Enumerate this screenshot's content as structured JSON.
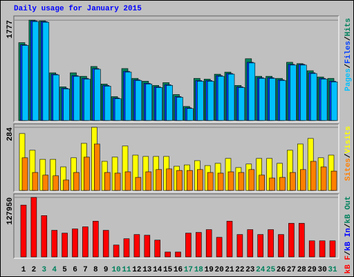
{
  "title": "Daily usage for January 2015",
  "categories": [
    "1",
    "2",
    "3",
    "4",
    "5",
    "6",
    "7",
    "8",
    "9",
    "10",
    "11",
    "12",
    "13",
    "14",
    "15",
    "16",
    "17",
    "18",
    "19",
    "20",
    "21",
    "22",
    "23",
    "24",
    "25",
    "26",
    "27",
    "28",
    "29",
    "30",
    "31"
  ],
  "category_colors": [
    "#000000",
    "#000000",
    "#00805c",
    "#00805c",
    "#000000",
    "#000000",
    "#000000",
    "#000000",
    "#000000",
    "#00805c",
    "#00805c",
    "#000000",
    "#000000",
    "#000000",
    "#000000",
    "#000000",
    "#00805c",
    "#00805c",
    "#000000",
    "#000000",
    "#000000",
    "#000000",
    "#000000",
    "#00805c",
    "#00805c",
    "#000000",
    "#000000",
    "#000000",
    "#000000",
    "#000000",
    "#00805c"
  ],
  "chart_data": [
    {
      "type": "bar",
      "ylim": [
        0,
        1827
      ],
      "yticks": [
        1777
      ],
      "separator": "/",
      "series": [
        {
          "name": "Hits",
          "color": "#00805c",
          "values": [
            1379,
            1777,
            1765,
            845,
            596,
            845,
            783,
            957,
            646,
            423,
            920,
            746,
            696,
            621,
            671,
            460,
            249,
            746,
            733,
            820,
            857,
            621,
            1094,
            783,
            783,
            746,
            1031,
            1007,
            882,
            771,
            746
          ]
        },
        {
          "name": "Files",
          "color": "#0040ff",
          "values": [
            1342,
            1765,
            1752,
            820,
            572,
            795,
            746,
            920,
            621,
            398,
            870,
            721,
            659,
            596,
            634,
            423,
            224,
            708,
            708,
            795,
            833,
            596,
            1031,
            758,
            758,
            721,
            994,
            994,
            845,
            746,
            696
          ]
        },
        {
          "name": "Pages",
          "color": "#00c0ff",
          "values": [
            1330,
            1752,
            1740,
            808,
            560,
            783,
            734,
            908,
            609,
            386,
            858,
            709,
            647,
            584,
            622,
            411,
            212,
            696,
            696,
            783,
            821,
            584,
            1019,
            746,
            746,
            709,
            982,
            982,
            833,
            734,
            684
          ]
        }
      ]
    },
    {
      "type": "bar",
      "ylim": [
        0,
        293
      ],
      "yticks": [
        284
      ],
      "separator": "/",
      "series": [
        {
          "name": "Visits",
          "color": "#ffff00",
          "values": [
            256,
            181,
            140,
            140,
            106,
            147,
            212,
            284,
            131,
            150,
            200,
            159,
            153,
            153,
            153,
            109,
            115,
            134,
            112,
            122,
            144,
            103,
            119,
            144,
            144,
            122,
            181,
            209,
            234,
            147,
            159
          ]
        },
        {
          "name": "Sites",
          "color": "#ff8000",
          "values": [
            147,
            81,
            69,
            66,
            47,
            81,
            150,
            209,
            81,
            78,
            84,
            59,
            84,
            94,
            97,
            90,
            90,
            94,
            81,
            78,
            84,
            81,
            94,
            69,
            56,
            59,
            81,
            94,
            131,
            106,
            87
          ]
        }
      ]
    },
    {
      "type": "bar",
      "ylim": [
        0,
        132466
      ],
      "yticks": [
        127950
      ],
      "separator": "/",
      "series": [
        {
          "name": "kB F",
          "color": "#ff0000",
          "values": [
            111392,
            127950,
            88813,
            57202,
            51180,
            60212,
            64728,
            76770,
            57202,
            25590,
            39138,
            48170,
            46665,
            36127,
            10537,
            10537,
            51180,
            52685,
            58707,
            42149,
            76770,
            48170,
            58707,
            48170,
            58707,
            48170,
            72254,
            72254,
            34622,
            34622,
            34622
          ]
        }
      ],
      "extra_legend": [
        {
          "name": "kB In",
          "color": "#0000ff"
        },
        {
          "name": "kB Out",
          "color": "#00805c"
        }
      ]
    }
  ]
}
